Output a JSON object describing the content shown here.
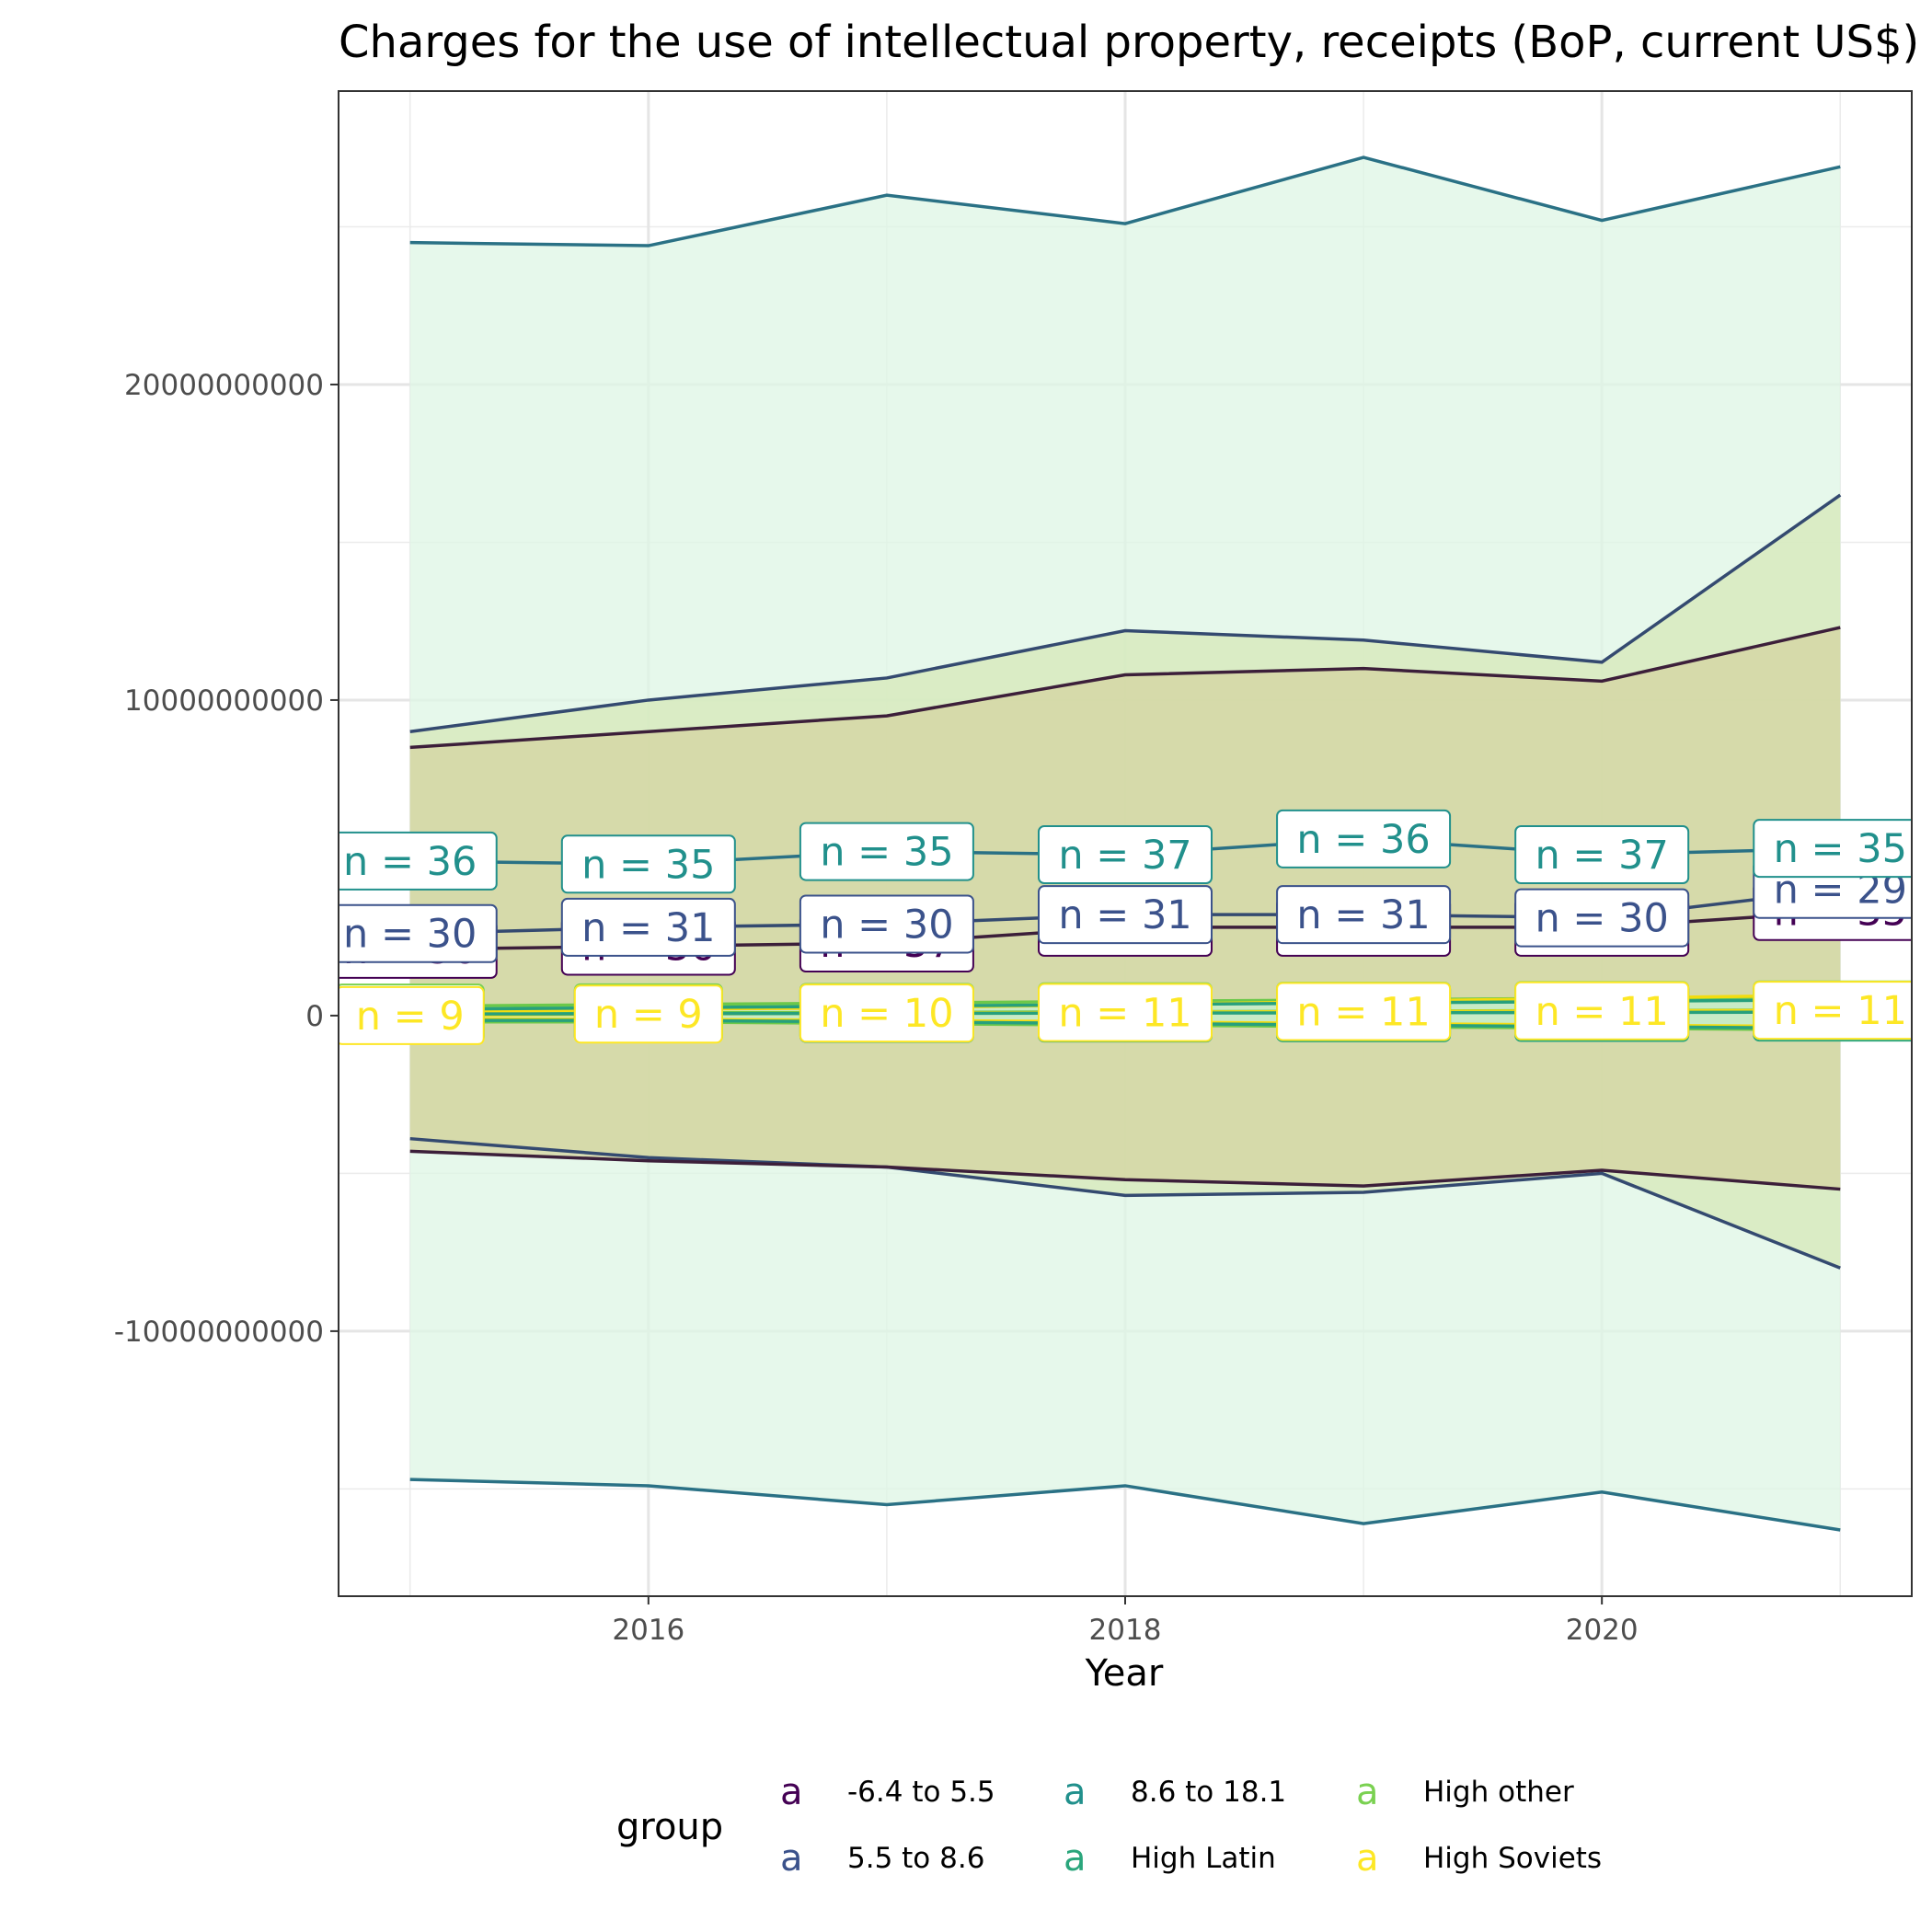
{
  "chart_data": {
    "type": "line",
    "title": "Charges for the use of intellectual property, receipts (BoP, current US$)",
    "xlabel": "Year",
    "ylabel": "",
    "x": [
      2015,
      2016,
      2017,
      2018,
      2019,
      2020,
      2021
    ],
    "x_ticks": [
      {
        "value": 2016,
        "label": "2016"
      },
      {
        "value": 2018,
        "label": "2018"
      },
      {
        "value": 2020,
        "label": "2020"
      }
    ],
    "xlim": [
      2014.7,
      2021.3
    ],
    "ylim": [
      -18400000000,
      29300000000
    ],
    "y_ticks": [
      {
        "value": 20000000000,
        "label": "20000000000"
      },
      {
        "value": 10000000000,
        "label": "10000000000"
      },
      {
        "value": 0,
        "label": "0"
      },
      {
        "value": -10000000000,
        "label": "-10000000000"
      }
    ],
    "grid": true,
    "legend": {
      "title": "group",
      "position": "bottom",
      "key_glyph": "a",
      "entries": [
        "-6.4 to 5.5",
        "5.5 to 8.6",
        "8.6 to 18.1",
        "High Latin",
        "High other",
        "High Soviets"
      ]
    },
    "series": [
      {
        "name": "-6.4 to 5.5",
        "color": "#440154",
        "line_color": "#3c1f3a",
        "fill": "#d4d4a0",
        "upper": [
          8500000000,
          9000000000,
          9500000000,
          10800000000,
          11000000000,
          10600000000,
          12300000000
        ],
        "mean": [
          2100000000,
          2200000000,
          2300000000,
          2800000000,
          2800000000,
          2800000000,
          3300000000
        ],
        "lower": [
          -4300000000,
          -4600000000,
          -4800000000,
          -5200000000,
          -5400000000,
          -4900000000,
          -5500000000
        ],
        "n_labels": [
          "n = 36",
          "n = 36",
          "n = 37",
          "n = 37",
          "n = 37",
          "n = 37",
          "n = 35"
        ]
      },
      {
        "name": "5.5 to 8.6",
        "color": "#3b528b",
        "line_color": "#344a70",
        "fill": "#d6e8b8",
        "upper": [
          9000000000,
          10000000000,
          10700000000,
          12200000000,
          11900000000,
          11200000000,
          16500000000
        ],
        "mean": [
          2600000000,
          2800000000,
          2900000000,
          3200000000,
          3200000000,
          3100000000,
          4000000000
        ],
        "lower": [
          -3900000000,
          -4500000000,
          -4800000000,
          -5700000000,
          -5600000000,
          -5000000000,
          -8000000000
        ],
        "n_labels": [
          "n = 30",
          "n = 31",
          "n = 30",
          "n = 31",
          "n = 31",
          "n = 30",
          "n = 29"
        ]
      },
      {
        "name": "8.6 to 18.1",
        "color": "#21908c",
        "line_color": "#2a7185",
        "fill": "#ddf5e4",
        "upper": [
          24500000000,
          24400000000,
          26000000000,
          25100000000,
          27200000000,
          25200000000,
          26900000000
        ],
        "mean": [
          4900000000,
          4800000000,
          5200000000,
          5100000000,
          5600000000,
          5100000000,
          5300000000
        ],
        "lower": [
          -14700000000,
          -14900000000,
          -15500000000,
          -14900000000,
          -16100000000,
          -15100000000,
          -16300000000
        ],
        "n_labels": [
          "n = 36",
          "n = 35",
          "n = 35",
          "n = 37",
          "n = 36",
          "n = 37",
          "n = 35"
        ]
      },
      {
        "name": "High Latin",
        "color": "#2aa67c",
        "line_color": "#27a07c",
        "fill": "#b9e8cf",
        "upper": [
          200000000,
          250000000,
          300000000,
          350000000,
          400000000,
          450000000,
          500000000
        ],
        "mean": [
          50000000,
          60000000,
          70000000,
          80000000,
          90000000,
          100000000,
          110000000
        ],
        "lower": [
          -150000000,
          -150000000,
          -200000000,
          -250000000,
          -300000000,
          -350000000,
          -400000000
        ],
        "n_labels": [
          "n = 9",
          "n = 9",
          "n = 10",
          "n = 11",
          "n = 11",
          "n = 11",
          "n = 11"
        ]
      },
      {
        "name": "High other",
        "color": "#7ad151",
        "line_color": "#6cc84a",
        "fill": "#d2f0bf",
        "upper": [
          300000000,
          350000000,
          400000000,
          450000000,
          500000000,
          550000000,
          600000000
        ],
        "mean": [
          80000000,
          90000000,
          100000000,
          120000000,
          140000000,
          160000000,
          180000000
        ],
        "lower": [
          -200000000,
          -200000000,
          -250000000,
          -300000000,
          -350000000,
          -400000000,
          -450000000
        ],
        "n_labels": [
          "n = 9",
          "n = 9",
          "n = 10",
          "n = 11",
          "n = 11",
          "n = 11",
          "n = 11"
        ]
      },
      {
        "name": "High Soviets",
        "color": "#fde725",
        "line_color": "#f2dc10",
        "fill": "#fbf3a8",
        "upper": [
          100000000,
          200000000,
          250000000,
          350000000,
          450000000,
          550000000,
          650000000
        ],
        "mean": [
          0,
          50000000,
          80000000,
          100000000,
          130000000,
          150000000,
          170000000
        ],
        "lower": [
          -100000000,
          -120000000,
          -150000000,
          -200000000,
          -250000000,
          -300000000,
          -350000000
        ],
        "n_labels": [
          "n = 9",
          "n = 9",
          "n = 10",
          "n = 11",
          "n = 11",
          "n = 11",
          "n = 11"
        ]
      }
    ]
  }
}
